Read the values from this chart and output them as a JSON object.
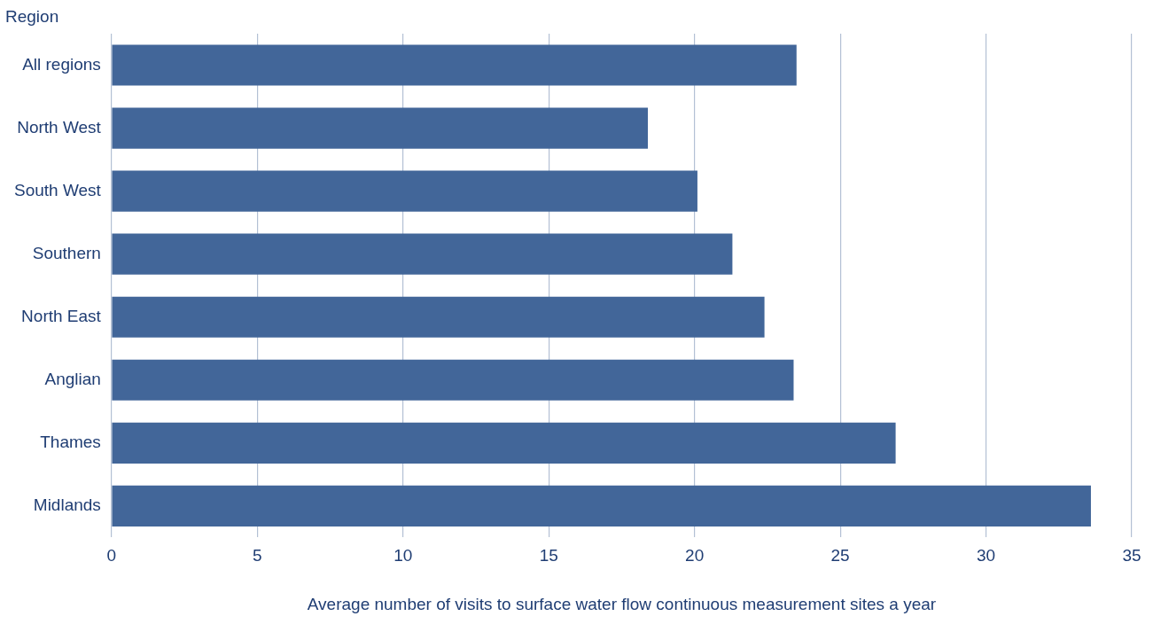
{
  "chart_data": {
    "type": "bar",
    "orientation": "horizontal",
    "ylabel": "Region",
    "xlabel": "Average number of visits to surface water flow continuous measurement sites a year",
    "categories": [
      "All regions",
      "North West",
      "South West",
      "Southern",
      "North East",
      "Anglian",
      "Thames",
      "Midlands"
    ],
    "values": [
      23.5,
      18.4,
      20.1,
      21.3,
      22.4,
      23.4,
      26.9,
      33.6
    ],
    "color": "#426699",
    "xlim": [
      0,
      35
    ],
    "xticks": [
      0,
      5,
      10,
      15,
      20,
      25,
      30,
      35
    ],
    "grid": "x",
    "legend": false
  }
}
